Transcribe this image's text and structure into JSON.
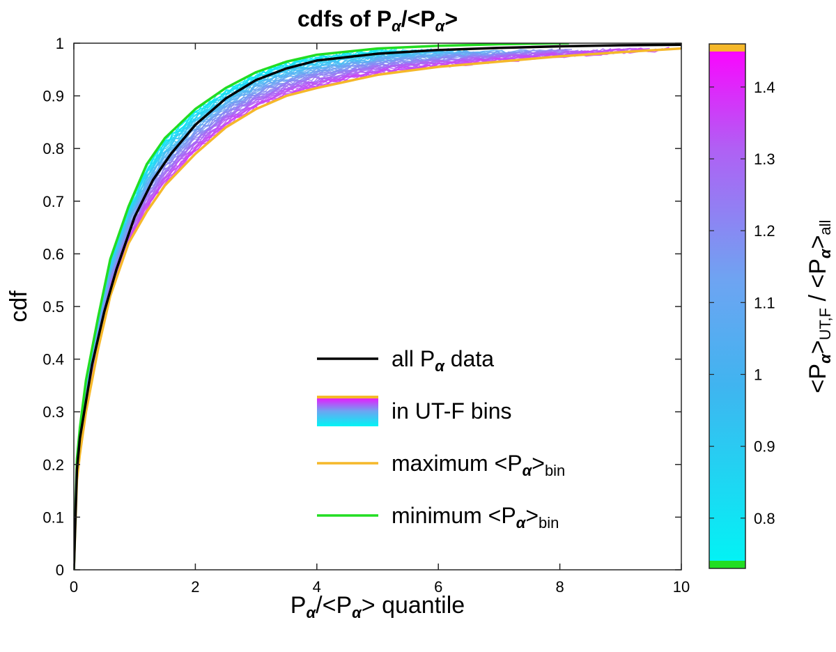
{
  "chart_data": {
    "type": "line",
    "title_parts": [
      "cdfs of P",
      "α",
      "/<P",
      "α",
      ">"
    ],
    "xlabel_parts": [
      "P",
      "α",
      "/<P",
      "α",
      "> quantile"
    ],
    "ylabel": "cdf",
    "xlim": [
      0,
      10
    ],
    "ylim": [
      0,
      1
    ],
    "xticks": [
      "0",
      "2",
      "4",
      "6",
      "8",
      "10"
    ],
    "yticks": [
      "0",
      "0.1",
      "0.2",
      "0.3",
      "0.4",
      "0.5",
      "0.6",
      "0.7",
      "0.8",
      "0.9",
      "1"
    ],
    "legend_placement": "inside-lower-right",
    "legend": [
      {
        "parts": [
          "all P",
          "α",
          " data"
        ],
        "color": "#000000",
        "kind": "line"
      },
      {
        "parts": [
          "in UT-F bins"
        ],
        "kind": "gradient"
      },
      {
        "parts": [
          "maximum <P",
          "α",
          ">",
          "bin"
        ],
        "color": "#f5b82a",
        "kind": "line"
      },
      {
        "parts": [
          "minimum <P",
          "α",
          ">",
          "bin"
        ],
        "color": "#22dd22",
        "kind": "line"
      }
    ],
    "colorbar": {
      "range": [
        0.73,
        1.46
      ],
      "ticks": [
        "0.8",
        "0.9",
        "1",
        "1.1",
        "1.2",
        "1.3",
        "1.4"
      ],
      "label_parts": [
        "<P",
        "α",
        ">",
        "UT,F",
        " / <P",
        "α",
        ">",
        "all"
      ],
      "colors": {
        "low": "#00f5f5",
        "mid": "#6ea4f2",
        "high": "#ff00ff",
        "min_end": "#22dd22",
        "max_end": "#f5b82a"
      }
    },
    "series": [
      {
        "name": "all P α data",
        "color": "#000000",
        "x": [
          0,
          0.05,
          0.1,
          0.2,
          0.3,
          0.5,
          0.7,
          1.0,
          1.3,
          1.6,
          2.0,
          2.5,
          3.0,
          3.5,
          4.0,
          5.0,
          6.0,
          7.0,
          8.0,
          9.0,
          10.0
        ],
        "y": [
          0,
          0.19,
          0.25,
          0.32,
          0.39,
          0.49,
          0.57,
          0.67,
          0.74,
          0.79,
          0.845,
          0.895,
          0.93,
          0.952,
          0.967,
          0.98,
          0.987,
          0.991,
          0.994,
          0.996,
          0.997
        ]
      },
      {
        "name": "maximum <P α>bin",
        "color": "#f5b82a",
        "x": [
          0,
          0.05,
          0.1,
          0.2,
          0.4,
          0.6,
          0.9,
          1.2,
          1.5,
          2.0,
          2.5,
          3.0,
          3.5,
          4.0,
          5.0,
          6.0,
          7.0,
          8.0,
          9.0,
          10.0
        ],
        "y": [
          0,
          0.17,
          0.22,
          0.3,
          0.42,
          0.52,
          0.62,
          0.68,
          0.73,
          0.79,
          0.84,
          0.875,
          0.9,
          0.915,
          0.94,
          0.955,
          0.965,
          0.975,
          0.983,
          0.99
        ]
      },
      {
        "name": "minimum <P α>bin",
        "color": "#22dd22",
        "x": [
          0,
          0.05,
          0.1,
          0.2,
          0.4,
          0.6,
          0.9,
          1.2,
          1.5,
          2.0,
          2.5,
          3.0,
          3.5,
          4.0,
          5.0,
          6.0,
          7.0,
          8.15
        ],
        "y": [
          0,
          0.21,
          0.27,
          0.36,
          0.48,
          0.59,
          0.69,
          0.77,
          0.82,
          0.875,
          0.915,
          0.945,
          0.965,
          0.978,
          0.99,
          0.995,
          0.998,
          1.0
        ]
      }
    ]
  }
}
